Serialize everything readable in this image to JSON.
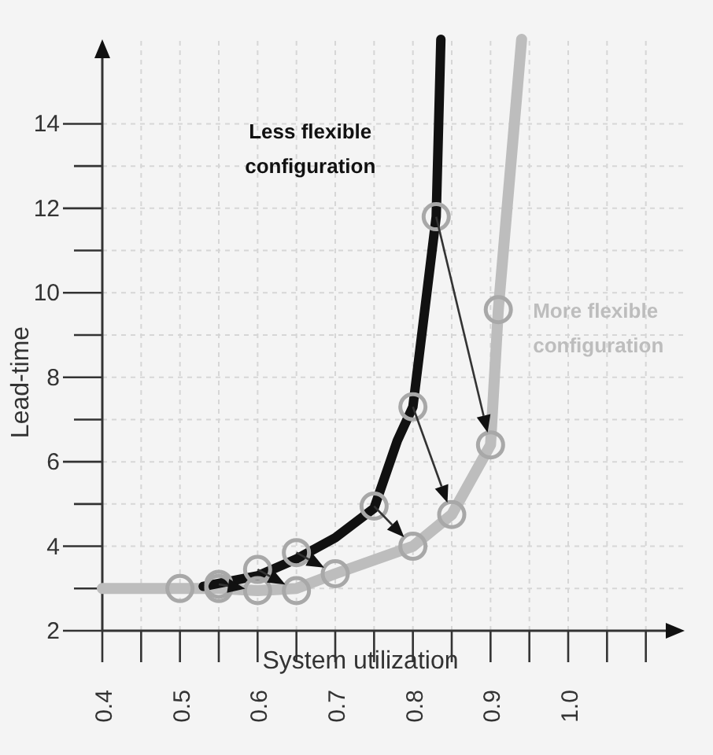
{
  "chart_data": {
    "type": "line",
    "xlabel": "System utilization",
    "ylabel": "Lead-time",
    "xlim": [
      0.4,
      1.15
    ],
    "ylim": [
      2,
      16
    ],
    "xticks": [
      0.4,
      {
        "value": 0.45,
        "label": null
      },
      0.5,
      {
        "value": 0.55,
        "label": null
      },
      0.6,
      {
        "value": 0.65,
        "label": null
      },
      0.7,
      {
        "value": 0.75,
        "label": null
      },
      0.8,
      {
        "value": 0.85,
        "label": null
      },
      0.9,
      {
        "value": 0.95,
        "label": null
      },
      {
        "value": 1.0,
        "label": "1.0"
      },
      {
        "value": 1.05,
        "label": null
      },
      {
        "value": 1.1,
        "label": null
      }
    ],
    "yticks": [
      2,
      {
        "value": 3,
        "label": null
      },
      4,
      {
        "value": 5,
        "label": null
      },
      6,
      {
        "value": 7,
        "label": null
      },
      8,
      {
        "value": 9,
        "label": null
      },
      10,
      {
        "value": 11,
        "label": null
      },
      12,
      {
        "value": 13,
        "label": null
      },
      14
    ],
    "grid": true,
    "legend": false,
    "series": [
      {
        "name": "More flexible configuration",
        "color": "#bdbdbd",
        "marker": "none",
        "x": [
          0.4,
          0.5,
          0.55,
          0.6,
          0.65,
          0.7,
          0.8,
          0.85,
          0.9,
          0.91,
          0.94
        ],
        "values": [
          3.0,
          3.0,
          3.0,
          2.95,
          3.0,
          3.35,
          4.0,
          4.75,
          6.4,
          9.6,
          16
        ]
      },
      {
        "name": "Less flexible configuration",
        "color": "#111111",
        "marker": "none",
        "x": [
          0.53,
          0.6,
          0.65,
          0.7,
          0.75,
          0.78,
          0.8,
          0.83,
          0.836
        ],
        "values": [
          3.05,
          3.3,
          3.7,
          4.2,
          4.9,
          6.5,
          7.3,
          11.8,
          16
        ]
      },
      {
        "type": "scatter",
        "color": "#a8a8a8",
        "marker": "circle",
        "x": [
          0.55,
          0.6,
          0.65,
          0.75,
          0.8,
          0.83
        ],
        "values": [
          3.1,
          3.45,
          3.85,
          4.95,
          7.3,
          11.8
        ]
      },
      {
        "type": "scatter",
        "color": "#a8a8a8",
        "marker": "circle",
        "x": [
          0.5,
          0.55,
          0.6,
          0.65,
          0.7,
          0.8,
          0.85,
          0.9,
          0.91
        ],
        "values": [
          3.0,
          3.0,
          2.95,
          2.95,
          3.35,
          4.0,
          4.75,
          6.4,
          9.6
        ]
      }
    ]
  }
}
